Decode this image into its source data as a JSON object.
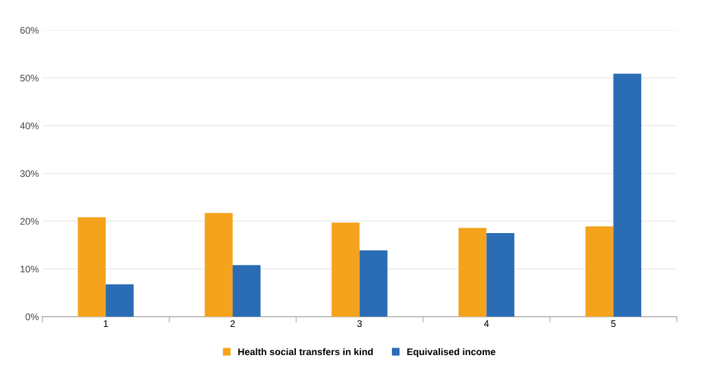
{
  "chart_data": {
    "type": "bar",
    "categories": [
      "1",
      "2",
      "3",
      "4",
      "5"
    ],
    "series": [
      {
        "name": "Health social transfers in kind",
        "color": "#f5a31c",
        "values": [
          20.8,
          21.7,
          19.7,
          18.6,
          18.9
        ]
      },
      {
        "name": "Equivalised income",
        "color": "#2a6db5",
        "values": [
          6.8,
          10.8,
          13.9,
          17.5,
          50.9
        ]
      }
    ],
    "ylim": [
      0,
      60
    ],
    "yticks": [
      {
        "value": 0,
        "label": "0%"
      },
      {
        "value": 10,
        "label": "10%"
      },
      {
        "value": 20,
        "label": "20%"
      },
      {
        "value": 30,
        "label": "30%"
      },
      {
        "value": 40,
        "label": "40%"
      },
      {
        "value": 50,
        "label": "50%"
      },
      {
        "value": 60,
        "label": "60%"
      }
    ],
    "grid": "y",
    "legend": "bottom"
  }
}
